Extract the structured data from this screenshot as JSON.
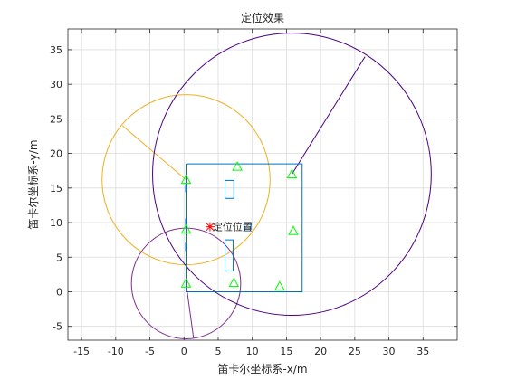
{
  "chart_data": {
    "type": "scatter",
    "title": "定位效果",
    "xlabel": "笛卡尔坐标系-x/m",
    "ylabel": "笛卡尔坐标系-y/m",
    "xlim": [
      -17,
      40
    ],
    "ylim": [
      -7,
      38
    ],
    "xticks": [
      -15,
      -10,
      -5,
      0,
      5,
      10,
      15,
      20,
      25,
      30,
      35
    ],
    "yticks": [
      -5,
      0,
      5,
      10,
      15,
      20,
      25,
      30,
      35
    ],
    "grid": true,
    "colors": {
      "room": "#0072bd",
      "anchor": "#00ff00",
      "estimate": "#ff0000",
      "circle_orange": "#edb120",
      "circle_purple": "#7e2f8e",
      "circle_violet": "#4b0082"
    },
    "room_outline": [
      [
        0.3,
        18.5
      ],
      [
        17.3,
        18.5
      ],
      [
        17.3,
        0
      ],
      [
        0.3,
        0
      ],
      [
        0.3,
        18.5
      ]
    ],
    "furniture": [
      {
        "x": 6,
        "y": 13.5,
        "w": 1.3,
        "h": 2.6
      },
      {
        "x": 6,
        "y": 3,
        "w": 1.2,
        "h": 4.5
      },
      {
        "x": 8.8,
        "y": 9,
        "w": 1,
        "h": 1
      }
    ],
    "anchors": [
      {
        "x": 0.3,
        "y": 16.2
      },
      {
        "x": 7.8,
        "y": 18.1
      },
      {
        "x": 15.8,
        "y": 17
      },
      {
        "x": 0.3,
        "y": 9
      },
      {
        "x": 16,
        "y": 8.8
      },
      {
        "x": 0.3,
        "y": 1.2
      },
      {
        "x": 7.3,
        "y": 1.3
      },
      {
        "x": 14,
        "y": 0.8
      }
    ],
    "circles": [
      {
        "cx": 0.3,
        "cy": 16.2,
        "r": 12.3,
        "color": "circle_orange",
        "radius_end": [
          -9,
          24
        ]
      },
      {
        "cx": 0.3,
        "cy": 1.2,
        "r": 8,
        "color": "circle_purple",
        "radius_end": [
          1.4,
          -6.7
        ]
      },
      {
        "cx": 15.8,
        "cy": 17,
        "r": 20.4,
        "color": "circle_violet",
        "radius_end": [
          26.5,
          34
        ]
      }
    ],
    "estimate": {
      "x": 3.8,
      "y": 9.4,
      "label": "定位位置"
    }
  }
}
